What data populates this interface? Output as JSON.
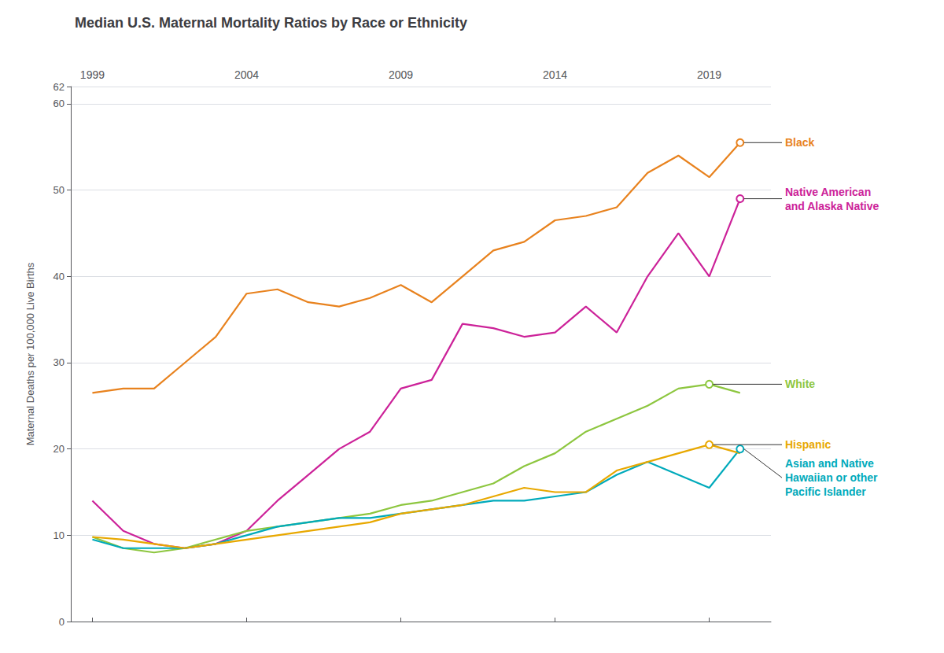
{
  "chart_data": {
    "type": "line",
    "title": "Median U.S. Maternal Mortality Ratios by Race or Ethnicity",
    "y_label": "Maternal Deaths per 100,000 Live Births",
    "x": [
      1999,
      2000,
      2001,
      2002,
      2003,
      2004,
      2005,
      2006,
      2007,
      2008,
      2009,
      2010,
      2011,
      2012,
      2013,
      2014,
      2015,
      2016,
      2017,
      2018,
      2019,
      2020
    ],
    "xlim": [
      1998.3,
      2021.0
    ],
    "xticks": [
      1999,
      2004,
      2009,
      2014,
      2019
    ],
    "ylim": [
      0,
      62
    ],
    "yticks": [
      0,
      10,
      20,
      30,
      40,
      50,
      60
    ],
    "grid": true,
    "series": [
      {
        "name": "Black",
        "color": "#E8821E",
        "label_x": 2020,
        "values": [
          26.5,
          27.0,
          27.0,
          30.0,
          33.0,
          38.0,
          38.5,
          37.0,
          36.5,
          37.5,
          39.0,
          37.0,
          40.0,
          43.0,
          44.0,
          46.5,
          47.0,
          48.0,
          52.0,
          54.0,
          51.5,
          55.5
        ]
      },
      {
        "name": "Native American\nand Alaska Native",
        "color": "#CC2299",
        "label_x": 2020,
        "values": [
          14.0,
          10.5,
          9.0,
          8.5,
          9.0,
          10.5,
          14.0,
          17.0,
          20.0,
          22.0,
          27.0,
          28.0,
          34.5,
          34.0,
          33.0,
          33.5,
          36.5,
          33.5,
          40.0,
          45.0,
          40.0,
          49.0
        ]
      },
      {
        "name": "White",
        "color": "#8DC63F",
        "label_x": 2019,
        "values": [
          9.8,
          8.5,
          8.0,
          8.5,
          9.5,
          10.5,
          11.0,
          11.5,
          12.0,
          12.5,
          13.5,
          14.0,
          15.0,
          16.0,
          18.0,
          19.5,
          22.0,
          23.5,
          25.0,
          27.0,
          27.5,
          26.5
        ]
      },
      {
        "name": "Asian and Native\nHawaiian or other\nPacific Islander",
        "color": "#00AABB",
        "label_x": 2020,
        "values": [
          9.5,
          8.5,
          8.5,
          8.5,
          9.0,
          10.0,
          11.0,
          11.5,
          12.0,
          12.0,
          12.5,
          13.0,
          13.5,
          14.0,
          14.0,
          14.5,
          15.0,
          17.0,
          18.5,
          17.0,
          15.5,
          20.0
        ]
      },
      {
        "name": "Hispanic",
        "color": "#E8A800",
        "label_x": 2019,
        "values": [
          9.8,
          9.5,
          9.0,
          8.5,
          9.0,
          9.5,
          10.0,
          10.5,
          11.0,
          11.5,
          12.5,
          13.0,
          13.5,
          14.5,
          15.5,
          15.0,
          15.0,
          17.5,
          18.5,
          19.5,
          20.5,
          19.5
        ]
      }
    ]
  }
}
